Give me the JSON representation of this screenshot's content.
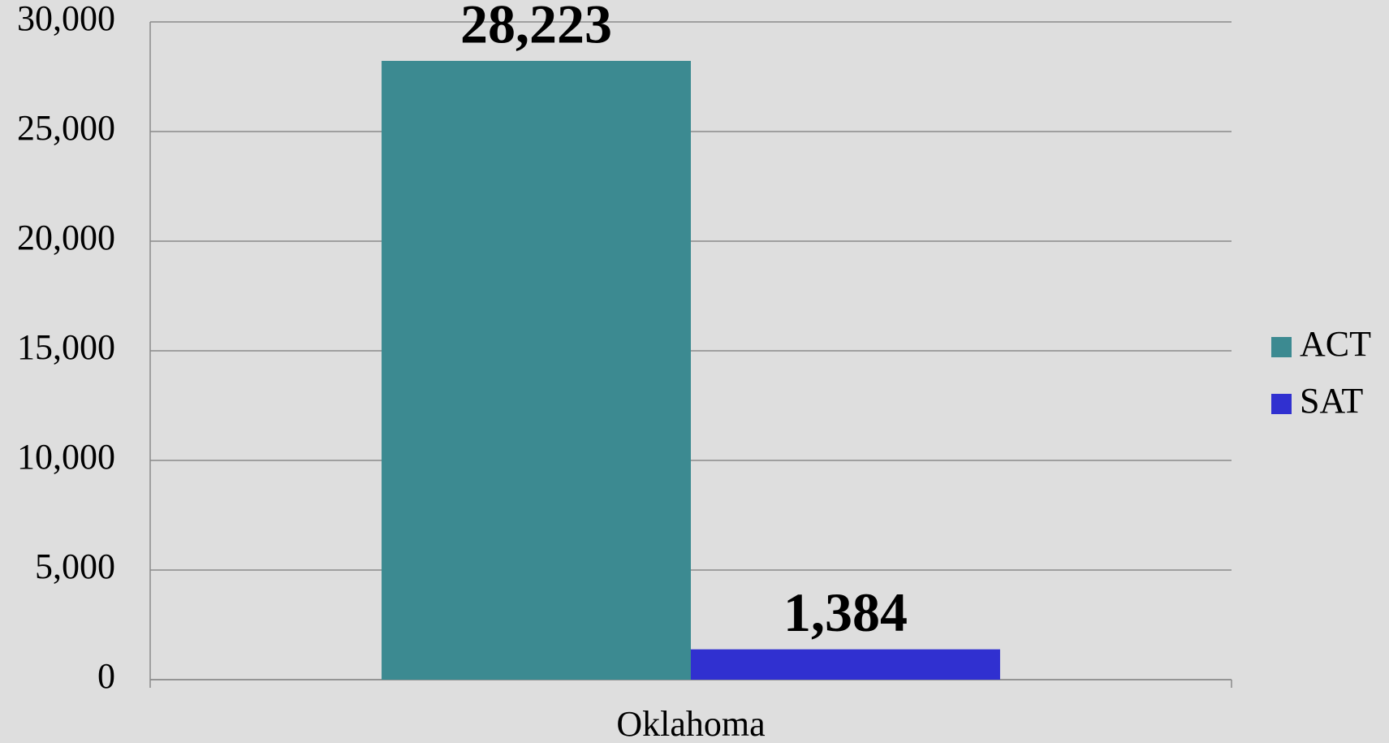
{
  "chart_data": {
    "type": "bar",
    "categories": [
      "Oklahoma"
    ],
    "series": [
      {
        "name": "ACT",
        "color": "#3c8a91",
        "values": [
          28223
        ],
        "value_labels": [
          "28,223"
        ]
      },
      {
        "name": "SAT",
        "color": "#3030d0",
        "values": [
          1384
        ],
        "value_labels": [
          "1,384"
        ]
      }
    ],
    "ylim": [
      0,
      30000
    ],
    "yticks": [
      0,
      {
        "value": 5000,
        "label": "5,000"
      },
      {
        "value": 10000,
        "label": "10,000"
      },
      {
        "value": 15000,
        "label": "15,000"
      },
      {
        "value": 20000,
        "label": "20,000"
      },
      {
        "value": 25000,
        "label": "25,000"
      },
      {
        "value": 30000,
        "label": "30,000"
      }
    ],
    "grid": true,
    "legend": "right"
  }
}
